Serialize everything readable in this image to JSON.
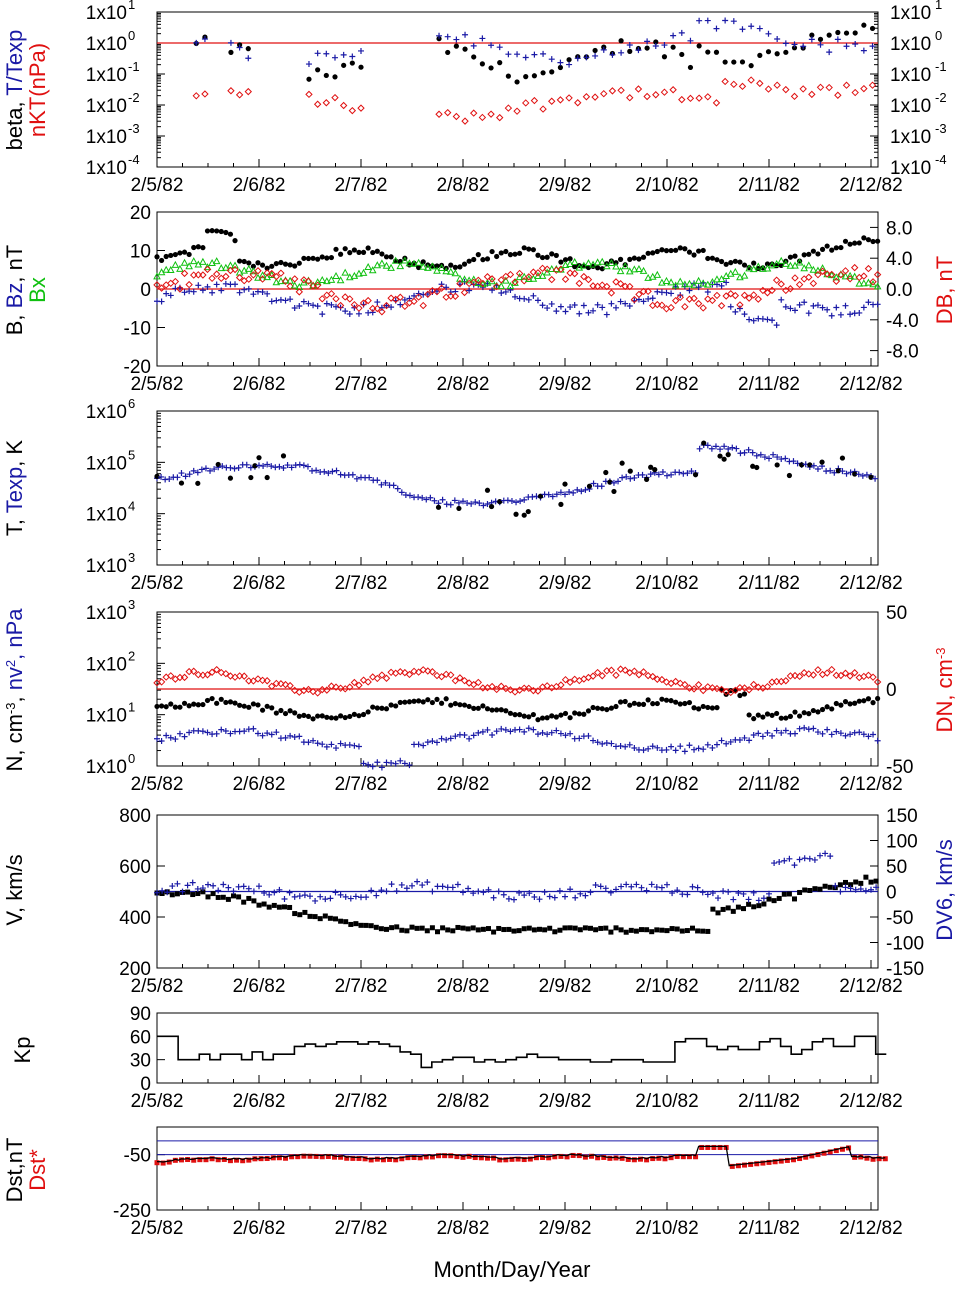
{
  "colors": {
    "black": "#000000",
    "blue": "#1a1aa6",
    "red": "#e01010",
    "green": "#10c010",
    "bg": "#ffffff"
  },
  "x_ticks": [
    "2/5/82",
    "2/6/82",
    "2/7/82",
    "2/8/82",
    "2/9/82",
    "2/10/82",
    "2/11/82",
    "2/12/82"
  ],
  "x_title": "Month/Day/Year",
  "panels": [
    {
      "id": "beta",
      "ylabels": [
        {
          "text": "beta, ",
          "color": "black"
        },
        {
          "text": "T/Texp",
          "color": "blue"
        }
      ],
      "ylabels2": [
        {
          "text": "nKT(nPa)",
          "color": "red"
        }
      ],
      "left_ticks": [
        "1x10",
        "1x10",
        "1x10",
        "1x10",
        "1x10",
        "1x10"
      ],
      "left_exps": [
        "1",
        "0",
        "-1",
        "-2",
        "-3",
        "-4"
      ],
      "right_ticks": [
        "1x10",
        "1x10",
        "1x10",
        "1x10",
        "1x10",
        "1x10"
      ],
      "right_exps": [
        "1",
        "0",
        "-1",
        "-2",
        "-3",
        "-4"
      ]
    },
    {
      "id": "b",
      "ylabels": [
        {
          "text": "B, ",
          "color": "black"
        },
        {
          "text": "Bz",
          "color": "blue"
        },
        {
          "text": ", nT",
          "color": "black"
        }
      ],
      "ylabels2": [
        {
          "text": "Bx",
          "color": "green"
        }
      ],
      "right_title": "DB, nT",
      "left_ticks": [
        "20",
        "10",
        "0",
        "-10",
        "-20"
      ],
      "right_ticks": [
        "8.0",
        "4.0",
        "0.0",
        "-4.0",
        "-8.0"
      ]
    },
    {
      "id": "t",
      "ylabels": [
        {
          "text": "T, ",
          "color": "black"
        },
        {
          "text": "Texp",
          "color": "blue"
        },
        {
          "text": ", K",
          "color": "black"
        }
      ],
      "left_ticks": [
        "1x10",
        "1x10",
        "1x10",
        "1x10"
      ],
      "left_exps": [
        "6",
        "5",
        "4",
        "3"
      ]
    },
    {
      "id": "n",
      "ylabels": [
        {
          "text": "N, cm",
          "color": "black"
        },
        {
          "text": "-3",
          "color": "black",
          "sup": true
        },
        {
          "text": ", ",
          "color": "black"
        },
        {
          "text": "nv",
          "color": "blue"
        },
        {
          "text": "2",
          "color": "blue",
          "sup": true
        },
        {
          "text": ", nPa",
          "color": "blue"
        }
      ],
      "right_title": "DN, cm",
      "right_title_sup": "-3",
      "left_ticks": [
        "1x10",
        "1x10",
        "1x10",
        "1x10"
      ],
      "left_exps": [
        "3",
        "2",
        "1",
        "0"
      ],
      "right_ticks": [
        "50",
        "0",
        "-50"
      ]
    },
    {
      "id": "v",
      "ylabels": [
        {
          "text": "V, km/s",
          "color": "black"
        }
      ],
      "right_title": "DV6, km/s",
      "left_ticks": [
        "800",
        "600",
        "400",
        "200"
      ],
      "right_ticks": [
        "150",
        "100",
        "50",
        "0",
        "-50",
        "-100",
        "-150"
      ]
    },
    {
      "id": "kp",
      "ylabels": [
        {
          "text": "Kp",
          "color": "black"
        }
      ],
      "left_ticks": [
        "90",
        "60",
        "30",
        "0"
      ]
    },
    {
      "id": "dst",
      "ylabels": [
        {
          "text": "Dst,nT",
          "color": "black"
        }
      ],
      "ylabels2": [
        {
          "text": "Dst*",
          "color": "red"
        }
      ],
      "left_ticks": [
        "-50",
        "-250"
      ]
    }
  ],
  "chart_data": [
    {
      "type": "scatter",
      "panel": "beta",
      "series": [
        {
          "name": "beta",
          "color": "black"
        },
        {
          "name": "T/Texp",
          "color": "blue"
        },
        {
          "name": "nKT(nPa)",
          "color": "red"
        }
      ],
      "ylim": [
        -4,
        1
      ],
      "yscale": "log",
      "x": "days since 2/5/82 axis 0-7.2",
      "values_note": "beta ~0.1-1, T/Texp ~0.1-1, nkT ~0.001-0.05"
    },
    {
      "type": "scatter",
      "panel": "b",
      "series": [
        {
          "name": "B",
          "color": "black"
        },
        {
          "name": "Bz",
          "color": "blue"
        },
        {
          "name": "Bx",
          "color": "green"
        },
        {
          "name": "DB",
          "color": "red"
        }
      ],
      "ylim": [
        -20,
        20
      ],
      "y2lim": [
        -10,
        10
      ]
    },
    {
      "type": "scatter",
      "panel": "t",
      "series": [
        {
          "name": "T",
          "color": "black"
        },
        {
          "name": "Texp",
          "color": "blue"
        }
      ],
      "ylim": [
        3,
        6
      ],
      "yscale": "log"
    },
    {
      "type": "scatter",
      "panel": "n",
      "series": [
        {
          "name": "N",
          "color": "black"
        },
        {
          "name": "nv2",
          "color": "blue"
        },
        {
          "name": "DN",
          "color": "red"
        }
      ],
      "ylim": [
        0,
        3
      ],
      "yscale": "log",
      "y2lim": [
        -50,
        50
      ]
    },
    {
      "type": "scatter",
      "panel": "v",
      "series": [
        {
          "name": "V",
          "color": "black"
        },
        {
          "name": "DV6",
          "color": "blue"
        }
      ],
      "ylim": [
        200,
        800
      ],
      "y2lim": [
        -150,
        150
      ]
    },
    {
      "type": "line",
      "panel": "kp",
      "series": [
        {
          "name": "Kp",
          "color": "black"
        }
      ],
      "ylim": [
        0,
        90
      ]
    },
    {
      "type": "line",
      "panel": "dst",
      "series": [
        {
          "name": "Dst",
          "color": "black"
        },
        {
          "name": "Dst*",
          "color": "red"
        }
      ],
      "ylim": [
        -250,
        50
      ]
    }
  ]
}
